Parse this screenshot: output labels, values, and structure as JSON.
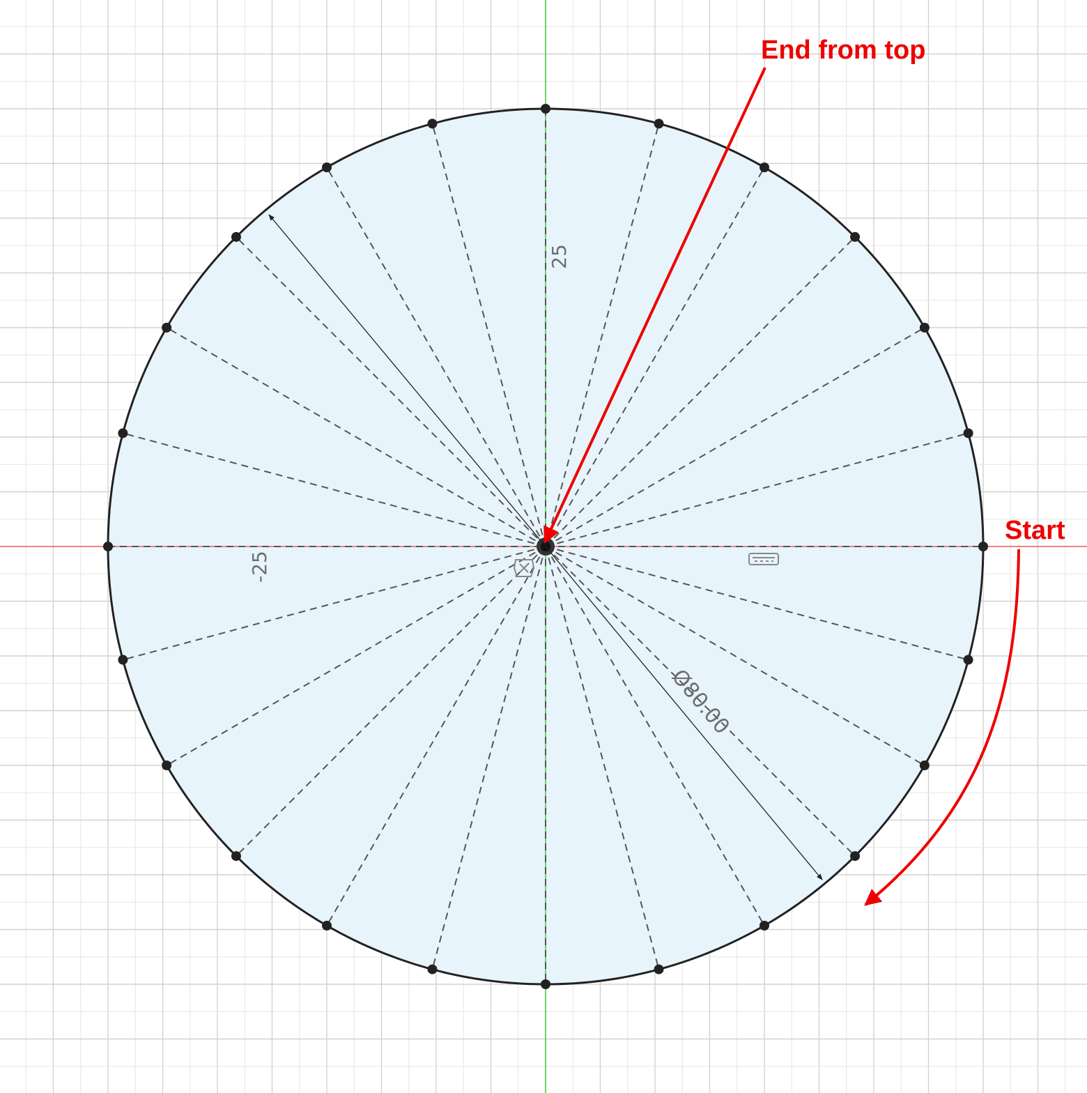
{
  "sketch": {
    "grid": true,
    "background_color": "#ffffff",
    "grid_minor_color": "#e6e6e6",
    "grid_major_color": "#d2d2d2",
    "x_axis_color": "#f06060",
    "y_axis_color": "#3ccf3c",
    "profile_fill_color": "#e8f4fb",
    "profile_stroke_color": "#222222",
    "construction_line_color": "#555555",
    "circle_diameter": 80,
    "division_count": 24,
    "ruler_labels": {
      "y_positive": "25",
      "x_negative": "-25"
    },
    "diameter_dimension": "Ø80.00",
    "glyph_icons": [
      "fix-constraint-icon",
      "horizontal-constraint-icon"
    ]
  },
  "annotations": {
    "color": "#ee0000",
    "end_label": "End from top",
    "start_label": "Start",
    "end_arrow_icon": "straight-arrow-icon",
    "start_arrow_icon": "curved-arrow-icon"
  }
}
